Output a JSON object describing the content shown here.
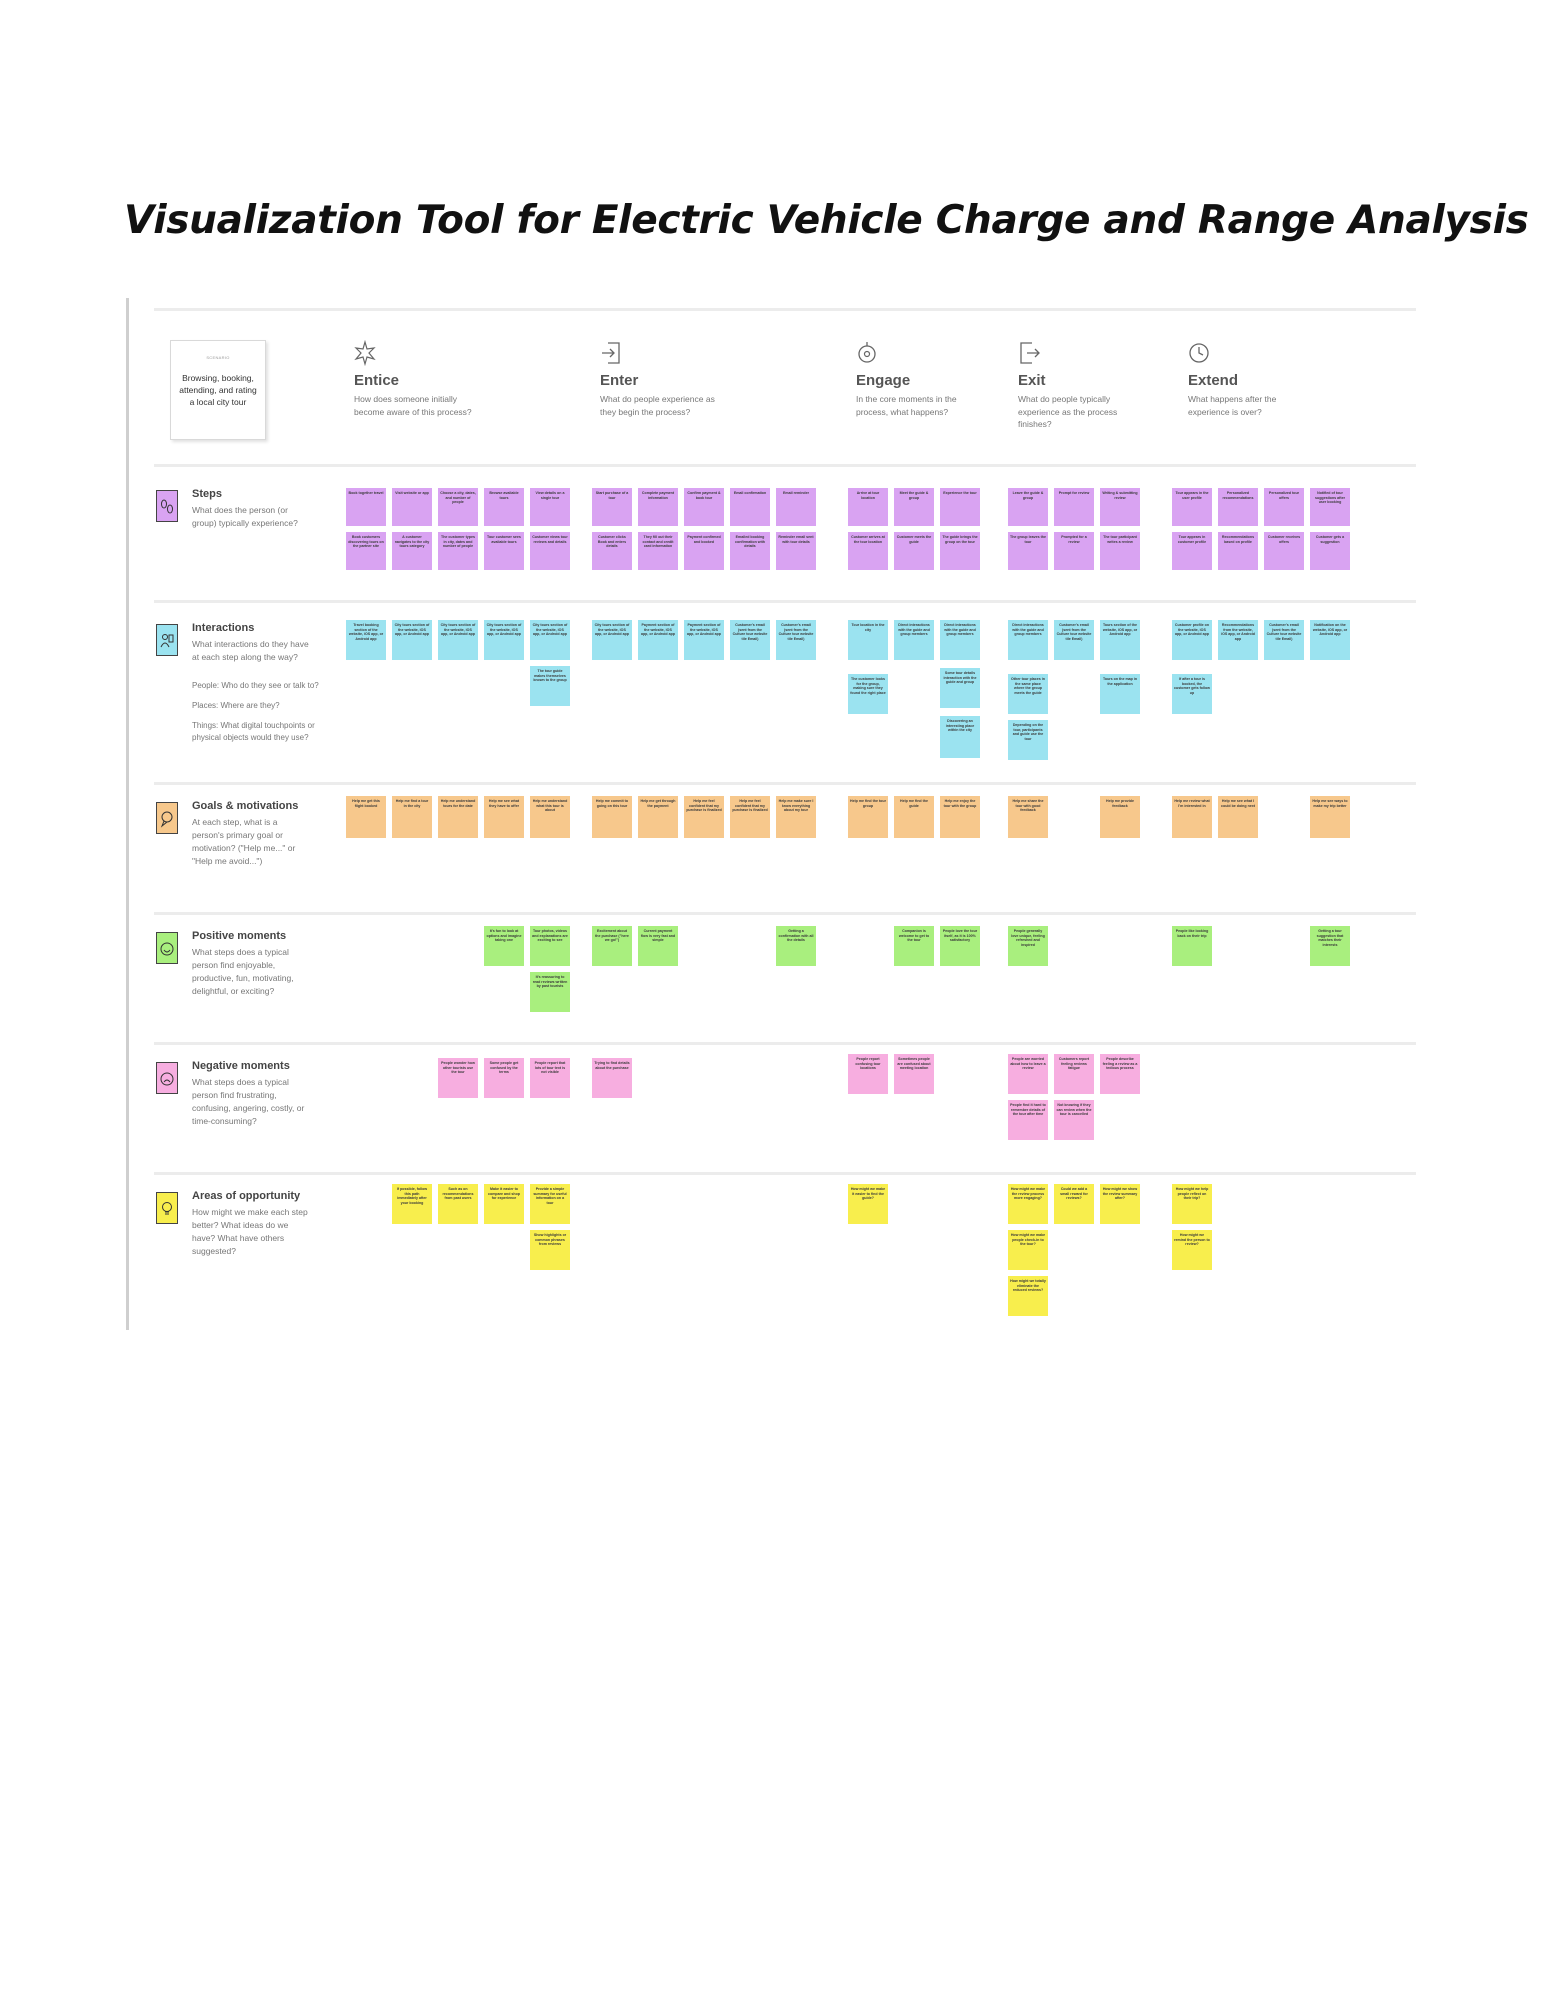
{
  "document": {
    "title": "Visualization Tool for Electric Vehicle Charge and Range Analysis"
  },
  "header_card": {
    "tag": "SCENARIO",
    "text": "Browsing, booking, attending, and rating a local city tour"
  },
  "phases": [
    {
      "key": "entice",
      "name": "Entice",
      "question": "How does someone initially become aware of this process?"
    },
    {
      "key": "enter",
      "name": "Enter",
      "question": "What do people experience as they begin the process?"
    },
    {
      "key": "engage",
      "name": "Engage",
      "question": "In the core moments in the process, what happens?"
    },
    {
      "key": "exit",
      "name": "Exit",
      "question": "What do people typically experience as the process finishes?"
    },
    {
      "key": "extend",
      "name": "Extend",
      "question": "What happens after the experience is over?"
    }
  ],
  "rows": [
    {
      "key": "steps",
      "title": "Steps",
      "question": "What does the person (or group) typically experience?",
      "color": "purple"
    },
    {
      "key": "interactions",
      "title": "Interactions",
      "question": "What interactions do they have at each step along the way?",
      "bullets": [
        "People: Who do they see or talk to?",
        "Places: Where are they?",
        "Things: What digital touchpoints or physical objects would they use?"
      ],
      "color": "blue"
    },
    {
      "key": "goals",
      "title": "Goals & motivations",
      "question": "At each step, what is a person's primary goal or motivation? (\"Help me...\" or \"Help me avoid...\")",
      "color": "orange"
    },
    {
      "key": "positive",
      "title": "Positive moments",
      "question": "What steps does a typical person find enjoyable, productive, fun, motivating, delightful, or exciting?",
      "color": "green"
    },
    {
      "key": "negative",
      "title": "Negative moments",
      "question": "What steps does a typical person find frustrating, confusing, angering, costly, or time-consuming?",
      "color": "pink"
    },
    {
      "key": "opportunity",
      "title": "Areas of opportunity",
      "question": "How might we make each step better? What ideas do we have? What have others suggested?",
      "color": "yellow"
    }
  ],
  "notes": {
    "steps": [
      [
        "Book together travel",
        "Visit website or app",
        "Choose a city, dates, and number of people",
        "Browse available tours",
        "View details on a single tour",
        "Start purchase of a tour",
        "Complete payment information",
        "Confirm payment & book tour",
        "Email confirmation",
        "Email reminder",
        "Arrive at tour location",
        "Meet the guide & group",
        "Experience the tour",
        "Leave the guide & group",
        "Prompt for review",
        "Writing & submitting review",
        "Tour appears in the user profile",
        "Personalized recommendations",
        "Personalized tour offers",
        "Notified of tour suggestions after user booking"
      ],
      [
        "Book customers discovering tours on the partner site",
        "A customer navigates to the city tours category",
        "The customer types in city, dates and number of people",
        "Tour customer sees available tours",
        "Customer views tour reviews and details",
        "Customer clicks Book and enters details",
        "They fill out their contact and credit card information",
        "Payment confirmed and booked",
        "Emailed booking confirmation with details",
        "Reminder email sent with tour details",
        "Customer arrives at the tour location",
        "Customer meets the guide",
        "The guide brings the group on the tour",
        "The group leaves the tour",
        "Prompted for a review",
        "The tour participant writes a review",
        "Tour appears in customer profile",
        "Recommendations based on profile",
        "Customer receives offers",
        "Customer gets a suggestion"
      ]
    ],
    "interactions": [
      [
        "Travel booking section of the website, iOS app, or Android app",
        "City tours section of the website, iOS app, or Android app",
        "City tours section of the website, iOS app, or Android app",
        "City tours section of the website, iOS app, or Android app",
        "City tours section of the website, iOS app, or Android app",
        "City tours section of the website, iOS app, or Android app",
        "Payment section of the website, iOS app, or Android app",
        "Payment section of the website, iOS app, or Android app",
        "Customer's email (sent from the Culture tour website tile Email)",
        "Customer's email (sent from the Culture tour website tile Email)",
        "Tour location in the city",
        "Direct interactions with the guide and group members",
        "Direct interactions with the guide and group members",
        "Direct interactions with the guide and group members",
        "Customer's email (sent from the Culture tour website tile Email)",
        "Tours section of the website, iOS app, or Android app",
        "Customer profile on the website, iOS app, or Android app",
        "Recommendations from the website, iOS app, or Android app",
        "Customer's email (sent from the Culture tour website tile Email)",
        "Notification on the website, iOS app, or Android app"
      ],
      [
        "The tour guide makes themselves known to the group",
        "The customer looks for the group, making sure they found the right place",
        "Some tour details interaction with the guide and group",
        "Other tour places in the same place where the group meets the guide",
        "Tours on the map in the application",
        "If after a tour is booked, the customer gets follow up"
      ],
      [
        "Discovering an interesting place within the city",
        "Depending on the tour, participants and guide use the tour"
      ]
    ],
    "goals": [
      "Help me get this flight booked",
      "Help me find a tour in the city",
      "Help me understand tours for the date",
      "Help me see what they have to offer",
      "Help me understand what this tour is about",
      "Help me commit to going on this tour",
      "Help me get through the payment",
      "Help me feel confident that my purchase is finalized",
      "Help me feel confident that my purchase is finalized",
      "Help me make sure I know everything about my tour",
      "Help me find the tour group",
      "Help me find the guide",
      "Help me enjoy the tour with the group",
      "Help me share the tour with good feedback",
      "Help me provide feedback",
      "Help me review what I'm interested in",
      "Help me see what I could be doing next",
      "Help me see ways to make my trip better"
    ],
    "positive": [
      "It's fun to look at options and imagine taking one",
      "Tour photos, videos and explanations are exciting to see",
      "It's reassuring to read reviews written by past tourists",
      "Excitement about the purchase (\"here we go!\")",
      "Current payment flow is very fast and simple",
      "Getting a confirmation with all the details",
      "Companion is welcome to get to the tour",
      "People love the tour itself, as it is 100% satisfactory",
      "People generally love unique, feeling refreshed and inspired",
      "People like looking back on their trip",
      "Getting a tour suggestion that matches their interests"
    ],
    "negative": [
      "People wonder how other tourists use the tour",
      "Some people get confused by the terms",
      "People report that lots of tour text is not visible",
      "Trying to find details about the purchase",
      "People report confusing tour locations",
      "Sometimes people are confused about meeting location",
      "People are worried about how to leave a review",
      "Customers report feeling reviews fatigue",
      "People describe feeling a review as a tedious process",
      "People find it hard to remember details of the tour after time",
      "Not knowing if they can review when the tour is cancelled"
    ],
    "opportunity": [
      "If possible, follow this path immediately after your booking",
      "Such as on recommendations from past users",
      "Make it easier to compare and shop for experience",
      "Provide a simple summary for useful information on a tour",
      "Show highlights or common phrases from reviews",
      "How might we make it easier to find the guide?",
      "How might we make the review process more engaging?",
      "Could we add a small reward for reviews?",
      "How might we show the review summary after?",
      "How might we help people reflect on their trip?",
      "How might we make people check-in to the tour?",
      "How might we remind the person to review?",
      "How might we totally eliminate the reduced reviews?"
    ]
  }
}
